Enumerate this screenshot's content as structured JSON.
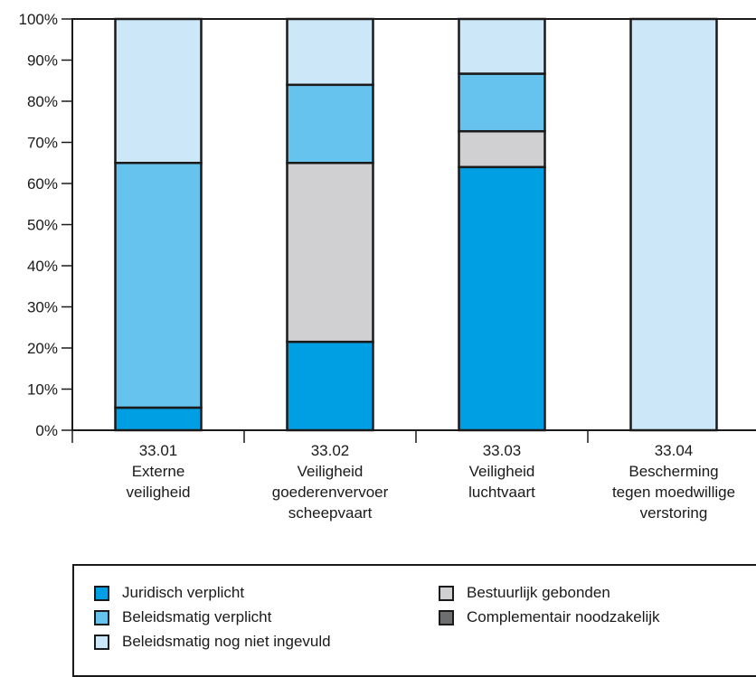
{
  "chart_data": {
    "type": "bar",
    "stacked": true,
    "categories": [
      [
        "33.01",
        "Externe",
        "veiligheid"
      ],
      [
        "33.02",
        "Veiligheid",
        "goederenvervoer",
        "scheepvaart"
      ],
      [
        "33.03",
        "Veiligheid",
        "luchtvaart"
      ],
      [
        "33.04",
        "Bescherming",
        "tegen moedwillige",
        "verstoring"
      ]
    ],
    "series": [
      {
        "name": "Juridisch verplicht",
        "color": "#009fe3",
        "values": [
          5.5,
          21.5,
          64,
          0
        ]
      },
      {
        "name": "Bestuurlijk gebonden",
        "color": "#d0d0d2",
        "values": [
          0,
          43.5,
          8.7,
          0
        ]
      },
      {
        "name": "Complementair noodzakelijk",
        "color": "#6d6e70",
        "values": [
          0,
          0,
          0,
          0
        ]
      },
      {
        "name": "Beleidsmatig verplicht",
        "color": "#66c3ee",
        "values": [
          59.5,
          19,
          14,
          0
        ]
      },
      {
        "name": "Beleidsmatig nog niet ingevuld",
        "color": "#cce8f8",
        "values": [
          35,
          16,
          13.3,
          100
        ]
      }
    ],
    "ylim": [
      0,
      100
    ],
    "yticks": [
      "0%",
      "10%",
      "20%",
      "30%",
      "40%",
      "50%",
      "60%",
      "70%",
      "80%",
      "90%",
      "100%"
    ],
    "grid": false,
    "legend": {
      "placement": "bottom",
      "left_column": [
        "Juridisch verplicht",
        "Beleidsmatig verplicht",
        "Beleidsmatig nog niet ingevuld"
      ],
      "right_column": [
        "Bestuurlijk gebonden",
        "Complementair noodzakelijk"
      ]
    }
  }
}
